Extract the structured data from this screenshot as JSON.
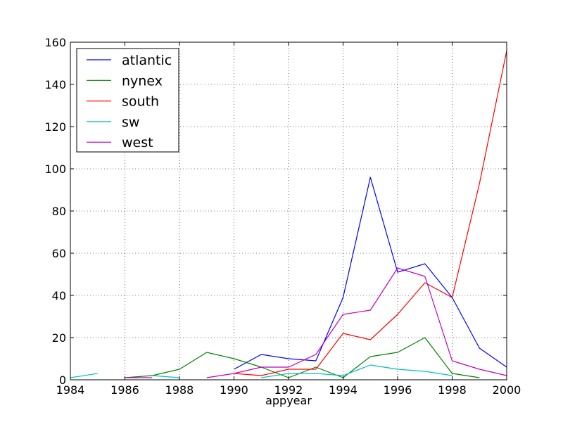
{
  "chart_data": {
    "type": "line",
    "xlabel": "appyear",
    "ylabel": "",
    "xlim": [
      1984,
      2000
    ],
    "ylim": [
      0,
      160
    ],
    "xticks": [
      1984,
      1986,
      1988,
      1990,
      1992,
      1994,
      1996,
      1998,
      2000
    ],
    "yticks": [
      0,
      20,
      40,
      60,
      80,
      100,
      120,
      140,
      160
    ],
    "grid": true,
    "legend_position": "top-left",
    "series": [
      {
        "name": "atlantic",
        "color": "#0000ff",
        "x": [
          1990,
          1991,
          1992,
          1993,
          1994,
          1995,
          1996,
          1997,
          1998,
          1999,
          2000
        ],
        "y": [
          5,
          12,
          10,
          9,
          39,
          96,
          51,
          55,
          39,
          15,
          6
        ]
      },
      {
        "name": "nynex",
        "color": "#008000",
        "x": [
          1986,
          1987,
          1988,
          1989,
          1990,
          1991,
          1992,
          1993,
          1994,
          1995,
          1996,
          1997,
          1998,
          1999
        ],
        "y": [
          1,
          2,
          5,
          13,
          10,
          6,
          1,
          6,
          1,
          11,
          13,
          20,
          3,
          1
        ]
      },
      {
        "name": "south",
        "color": "#ff0000",
        "x": [
          1990,
          1991,
          1992,
          1993,
          1994,
          1995,
          1996,
          1997,
          1998,
          1999,
          2000
        ],
        "y": [
          3,
          2,
          5,
          5,
          22,
          19,
          31,
          46,
          39,
          93,
          156
        ]
      },
      {
        "name": "sw",
        "color": "#00bfbf",
        "x": [
          1984,
          1985
        ],
        "y": [
          1,
          3
        ],
        "x2": [
          1987,
          1988
        ],
        "y2": [
          2,
          1
        ],
        "x3": [
          1991,
          1992,
          1993,
          1994,
          1995,
          1996,
          1997,
          1998
        ],
        "y3": [
          1,
          3,
          3,
          2,
          7,
          5,
          4,
          2
        ]
      },
      {
        "name": "west",
        "color": "#bf00bf",
        "x": [
          1986,
          1987
        ],
        "y": [
          1,
          1
        ],
        "x2": [
          1989,
          1990,
          1991,
          1992,
          1993,
          1994,
          1995,
          1996,
          1997,
          1998,
          1999,
          2000
        ],
        "y2": [
          1,
          3,
          6,
          6,
          12,
          31,
          33,
          53,
          49,
          9,
          5,
          2
        ]
      }
    ]
  }
}
